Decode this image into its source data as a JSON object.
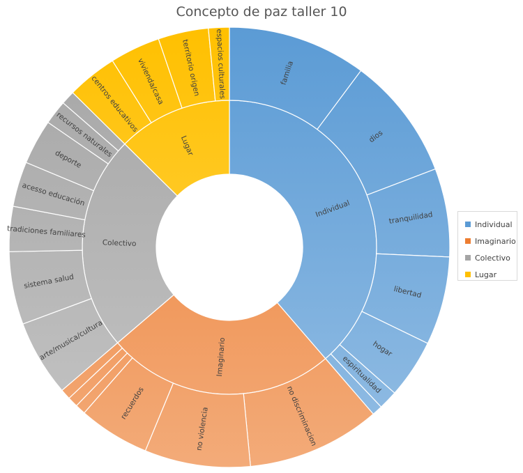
{
  "chart_data": {
    "type": "sunburst",
    "title": "Concepto de paz taller 10",
    "legend_position": "right",
    "categories": [
      {
        "name": "Individual",
        "color": "#5b9bd5",
        "children": [
          {
            "name": "familia",
            "value": 8
          },
          {
            "name": "dios",
            "value": 7.1
          },
          {
            "name": "tranquilidad",
            "value": 5.1
          },
          {
            "name": "libertad",
            "value": 5.1
          },
          {
            "name": "hogar",
            "value": 3.4
          },
          {
            "name": "espiritualidad",
            "value": 1.1
          },
          {
            "name": "",
            "value": 0.6
          }
        ]
      },
      {
        "name": "Imaginario",
        "color": "#ed7d31",
        "children": [
          {
            "name": "no discriminacion",
            "value": 7.7
          },
          {
            "name": "no violencia",
            "value": 6.1
          },
          {
            "name": "recuerdos",
            "value": 4.1
          },
          {
            "name": "",
            "value": 0.6
          },
          {
            "name": "",
            "value": 0.6
          },
          {
            "name": "",
            "value": 0.6
          }
        ]
      },
      {
        "name": "Colectivo",
        "color": "#a5a5a5",
        "children": [
          {
            "name": "arte/musica/cultura",
            "value": 4.4
          },
          {
            "name": "sistema salud",
            "value": 4.2
          },
          {
            "name": "tradiciones familiares",
            "value": 2.6
          },
          {
            "name": "acesso educación",
            "value": 2.6
          },
          {
            "name": "deporte",
            "value": 2.6
          },
          {
            "name": "recursos naturales",
            "value": 1.4
          },
          {
            "name": "",
            "value": 0.8
          }
        ]
      },
      {
        "name": "Lugar",
        "color": "#ffc000",
        "children": [
          {
            "name": "centros educativos",
            "value": 2.9
          },
          {
            "name": "vivienda/casa",
            "value": 2.9
          },
          {
            "name": "territorio origen",
            "value": 2.9
          },
          {
            "name": "espacios culturales",
            "value": 1.2
          }
        ]
      }
    ]
  }
}
